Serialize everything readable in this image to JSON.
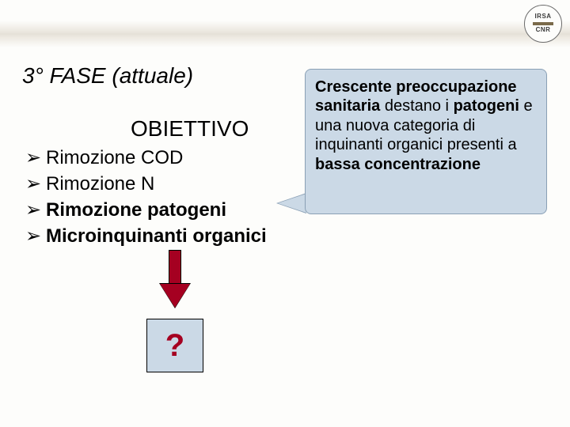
{
  "colors": {
    "background": "#fdfdfb",
    "callout_fill": "#cbd9e6",
    "callout_border": "#8aa0b5",
    "arrow_fill": "#a50021",
    "question_color": "#a50021",
    "text": "#000000"
  },
  "logo": {
    "line1": "IRSA",
    "line2": "CNR"
  },
  "title": "3° FASE (attuale)",
  "section_title": "OBIETTIVO",
  "bullets": [
    {
      "marker": "➢",
      "text": "Rimozione COD",
      "bold": false
    },
    {
      "marker": "➢",
      "text": "Rimozione N",
      "bold": false
    },
    {
      "marker": "➢",
      "text": "Rimozione patogeni",
      "bold": true
    },
    {
      "marker": "➢",
      "text": "Microinquinanti organici",
      "bold": true
    }
  ],
  "callout": {
    "bold_lead": "Crescente preoccupazione sanitaria",
    "rest": " destano i ",
    "bold_mid": "patogeni",
    "rest2": " e una nuova categoria di inquinanti organici presenti a ",
    "bold_tail": "bassa concentrazione"
  },
  "question_mark": "?"
}
